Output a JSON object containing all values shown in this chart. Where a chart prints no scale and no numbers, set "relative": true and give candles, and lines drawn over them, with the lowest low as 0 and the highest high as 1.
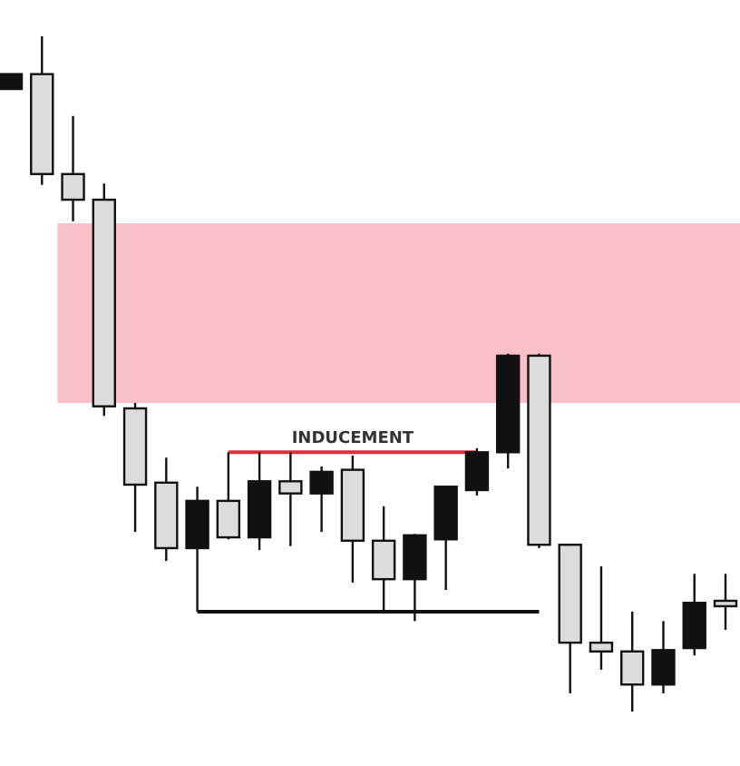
{
  "chart_data": {
    "type": "candlestick",
    "relative": true,
    "categories": [
      null,
      null,
      null,
      null,
      null,
      null,
      null,
      null,
      null,
      null,
      null,
      null,
      null,
      null,
      null,
      null,
      null,
      null,
      null,
      null,
      null,
      null,
      null,
      null
    ],
    "ohlc": [
      [
        0.922,
        0.944,
        0.922,
        0.944
      ],
      [
        0.944,
        1.0,
        0.78,
        0.796
      ],
      [
        0.796,
        0.882,
        0.726,
        0.758
      ],
      [
        0.758,
        0.782,
        0.438,
        0.452
      ],
      [
        0.449,
        0.457,
        0.266,
        0.336
      ],
      [
        0.339,
        0.376,
        0.223,
        0.242
      ],
      [
        0.242,
        0.333,
        0.148,
        0.312
      ],
      [
        0.312,
        0.384,
        0.255,
        0.258
      ],
      [
        0.258,
        0.384,
        0.239,
        0.341
      ],
      [
        0.341,
        0.384,
        0.245,
        0.323
      ],
      [
        0.323,
        0.363,
        0.266,
        0.355
      ],
      [
        0.358,
        0.379,
        0.191,
        0.253
      ],
      [
        0.253,
        0.304,
        0.145,
        0.196
      ],
      [
        0.196,
        0.263,
        0.134,
        0.261
      ],
      [
        0.255,
        0.333,
        0.18,
        0.333
      ],
      [
        0.328,
        0.39,
        0.32,
        0.384
      ],
      [
        0.384,
        0.53,
        0.36,
        0.527
      ],
      [
        0.527,
        0.53,
        0.242,
        0.247
      ],
      [
        0.247,
        0.247,
        0.027,
        0.102
      ],
      [
        0.102,
        0.215,
        0.062,
        0.089
      ],
      [
        0.089,
        0.148,
        0.0,
        0.04
      ],
      [
        0.04,
        0.134,
        0.027,
        0.091
      ],
      [
        0.094,
        0.204,
        0.083,
        0.161
      ],
      [
        0.164,
        0.204,
        0.121,
        0.156
      ]
    ],
    "colors": [
      "#111111",
      "#dcdcdc",
      "#dcdcdc",
      "#dcdcdc",
      "#dcdcdc",
      "#dcdcdc",
      "#111111",
      "#dcdcdc",
      "#111111",
      "#dcdcdc",
      "#111111",
      "#dcdcdc",
      "#dcdcdc",
      "#111111",
      "#111111",
      "#111111",
      "#111111",
      "#dcdcdc",
      "#dcdcdc",
      "#dcdcdc",
      "#dcdcdc",
      "#111111",
      "#111111",
      "#dcdcdc"
    ],
    "series": [
      {
        "type": "line",
        "color": "#d9303e",
        "values": [
          null,
          null,
          null,
          null,
          null,
          null,
          null,
          0.384,
          0.384,
          0.384,
          0.384,
          0.384,
          0.384,
          0.384,
          0.384,
          0.384,
          null,
          null,
          null,
          null,
          null,
          null,
          null,
          null
        ]
      },
      {
        "type": "line",
        "color": "#111111",
        "values": [
          null,
          null,
          null,
          null,
          null,
          null,
          0.148,
          0.148,
          0.148,
          0.148,
          0.148,
          0.148,
          0.148,
          0.148,
          0.148,
          0.148,
          0.148,
          0.148,
          null,
          null,
          null,
          null,
          null,
          null
        ]
      }
    ],
    "bands": [
      {
        "axis": "y",
        "from": 0.457,
        "to": 0.723,
        "color": "#f9c0c8"
      }
    ],
    "annotations": [
      {
        "text": "INDUCEMENT",
        "y": 0.384
      }
    ]
  }
}
